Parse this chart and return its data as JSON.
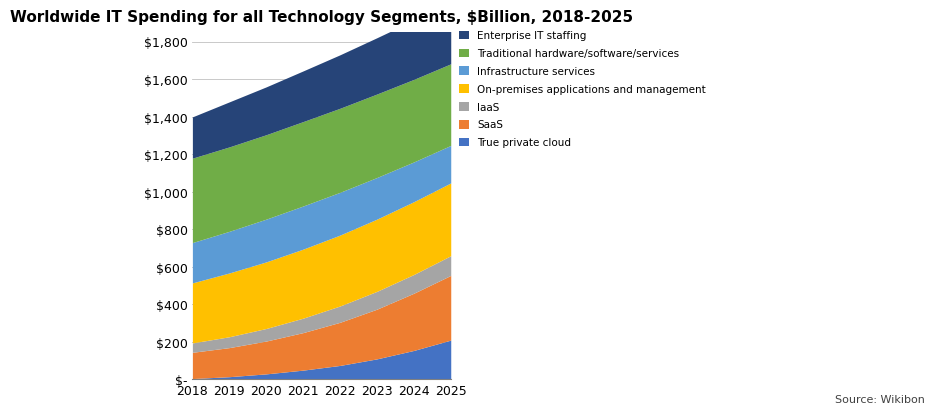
{
  "title": "Worldwide IT Spending for all Technology Segments, $Billion, 2018-2025",
  "years": [
    2018,
    2019,
    2020,
    2021,
    2022,
    2023,
    2024,
    2025
  ],
  "segments": [
    {
      "label": "True private cloud",
      "color": "#4472C4",
      "values": [
        5,
        15,
        30,
        50,
        75,
        110,
        155,
        210
      ]
    },
    {
      "label": "SaaS",
      "color": "#ED7D31",
      "values": [
        140,
        155,
        175,
        200,
        230,
        265,
        305,
        345
      ]
    },
    {
      "label": "IaaS",
      "color": "#A5A5A5",
      "values": [
        50,
        58,
        67,
        77,
        87,
        95,
        100,
        105
      ]
    },
    {
      "label": "On-premises applications and management",
      "color": "#FFC000",
      "values": [
        320,
        340,
        355,
        368,
        378,
        385,
        388,
        388
      ]
    },
    {
      "label": "Infrastructure services",
      "color": "#5B9BD5",
      "values": [
        215,
        222,
        228,
        230,
        228,
        222,
        212,
        200
      ]
    },
    {
      "label": "Traditional hardware/software/services",
      "color": "#70AD47",
      "values": [
        450,
        450,
        450,
        450,
        448,
        445,
        440,
        435
      ]
    },
    {
      "label": "Enterprise IT staffing",
      "color": "#264478",
      "values": [
        220,
        240,
        255,
        270,
        285,
        300,
        315,
        330
      ]
    }
  ],
  "yticks": [
    0,
    200,
    400,
    600,
    800,
    1000,
    1200,
    1400,
    1600,
    1800
  ],
  "ytick_labels": [
    "$-",
    "$200",
    "$400",
    "$600",
    "$800",
    "$1,000",
    "$1,200",
    "$1,400",
    "$1,600",
    "$1,800"
  ],
  "ylim": [
    0,
    1850
  ],
  "xlim_left": 2018,
  "xlim_right": 2025,
  "source_text": "Source: Wikibon",
  "background_color": "#FFFFFF",
  "plot_bg_color": "#FFFFFF",
  "title_fontsize": 11,
  "tick_fontsize": 9,
  "legend_fontsize": 7.5
}
